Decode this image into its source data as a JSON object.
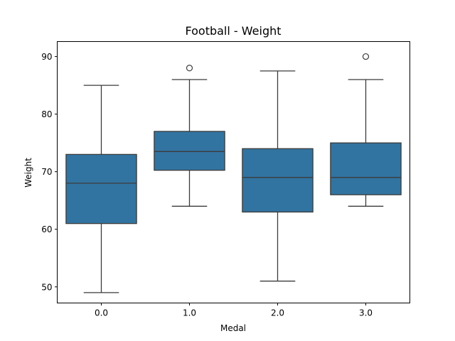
{
  "chart_data": {
    "type": "box",
    "title": "Football - Weight",
    "xlabel": "Medal",
    "ylabel": "Weight",
    "categories": [
      "0.0",
      "1.0",
      "2.0",
      "3.0"
    ],
    "y_ticks": [
      50,
      60,
      70,
      80,
      90
    ],
    "ylim": [
      47.2,
      92.6
    ],
    "grid": false,
    "legend": "none",
    "box_color": "#3274a1",
    "line_color": "#3b3b3b",
    "boxes": [
      {
        "category": "0.0",
        "whisker_low": 49,
        "q1": 61,
        "median": 68,
        "q3": 73,
        "whisker_high": 85,
        "outliers": []
      },
      {
        "category": "1.0",
        "whisker_low": 64,
        "q1": 70.25,
        "median": 73.5,
        "q3": 77,
        "whisker_high": 86,
        "outliers": [
          88
        ]
      },
      {
        "category": "2.0",
        "whisker_low": 51,
        "q1": 63,
        "median": 69,
        "q3": 74,
        "whisker_high": 87.5,
        "outliers": []
      },
      {
        "category": "3.0",
        "whisker_low": 64,
        "q1": 66,
        "median": 69,
        "q3": 75,
        "whisker_high": 86,
        "outliers": [
          90
        ]
      }
    ]
  }
}
